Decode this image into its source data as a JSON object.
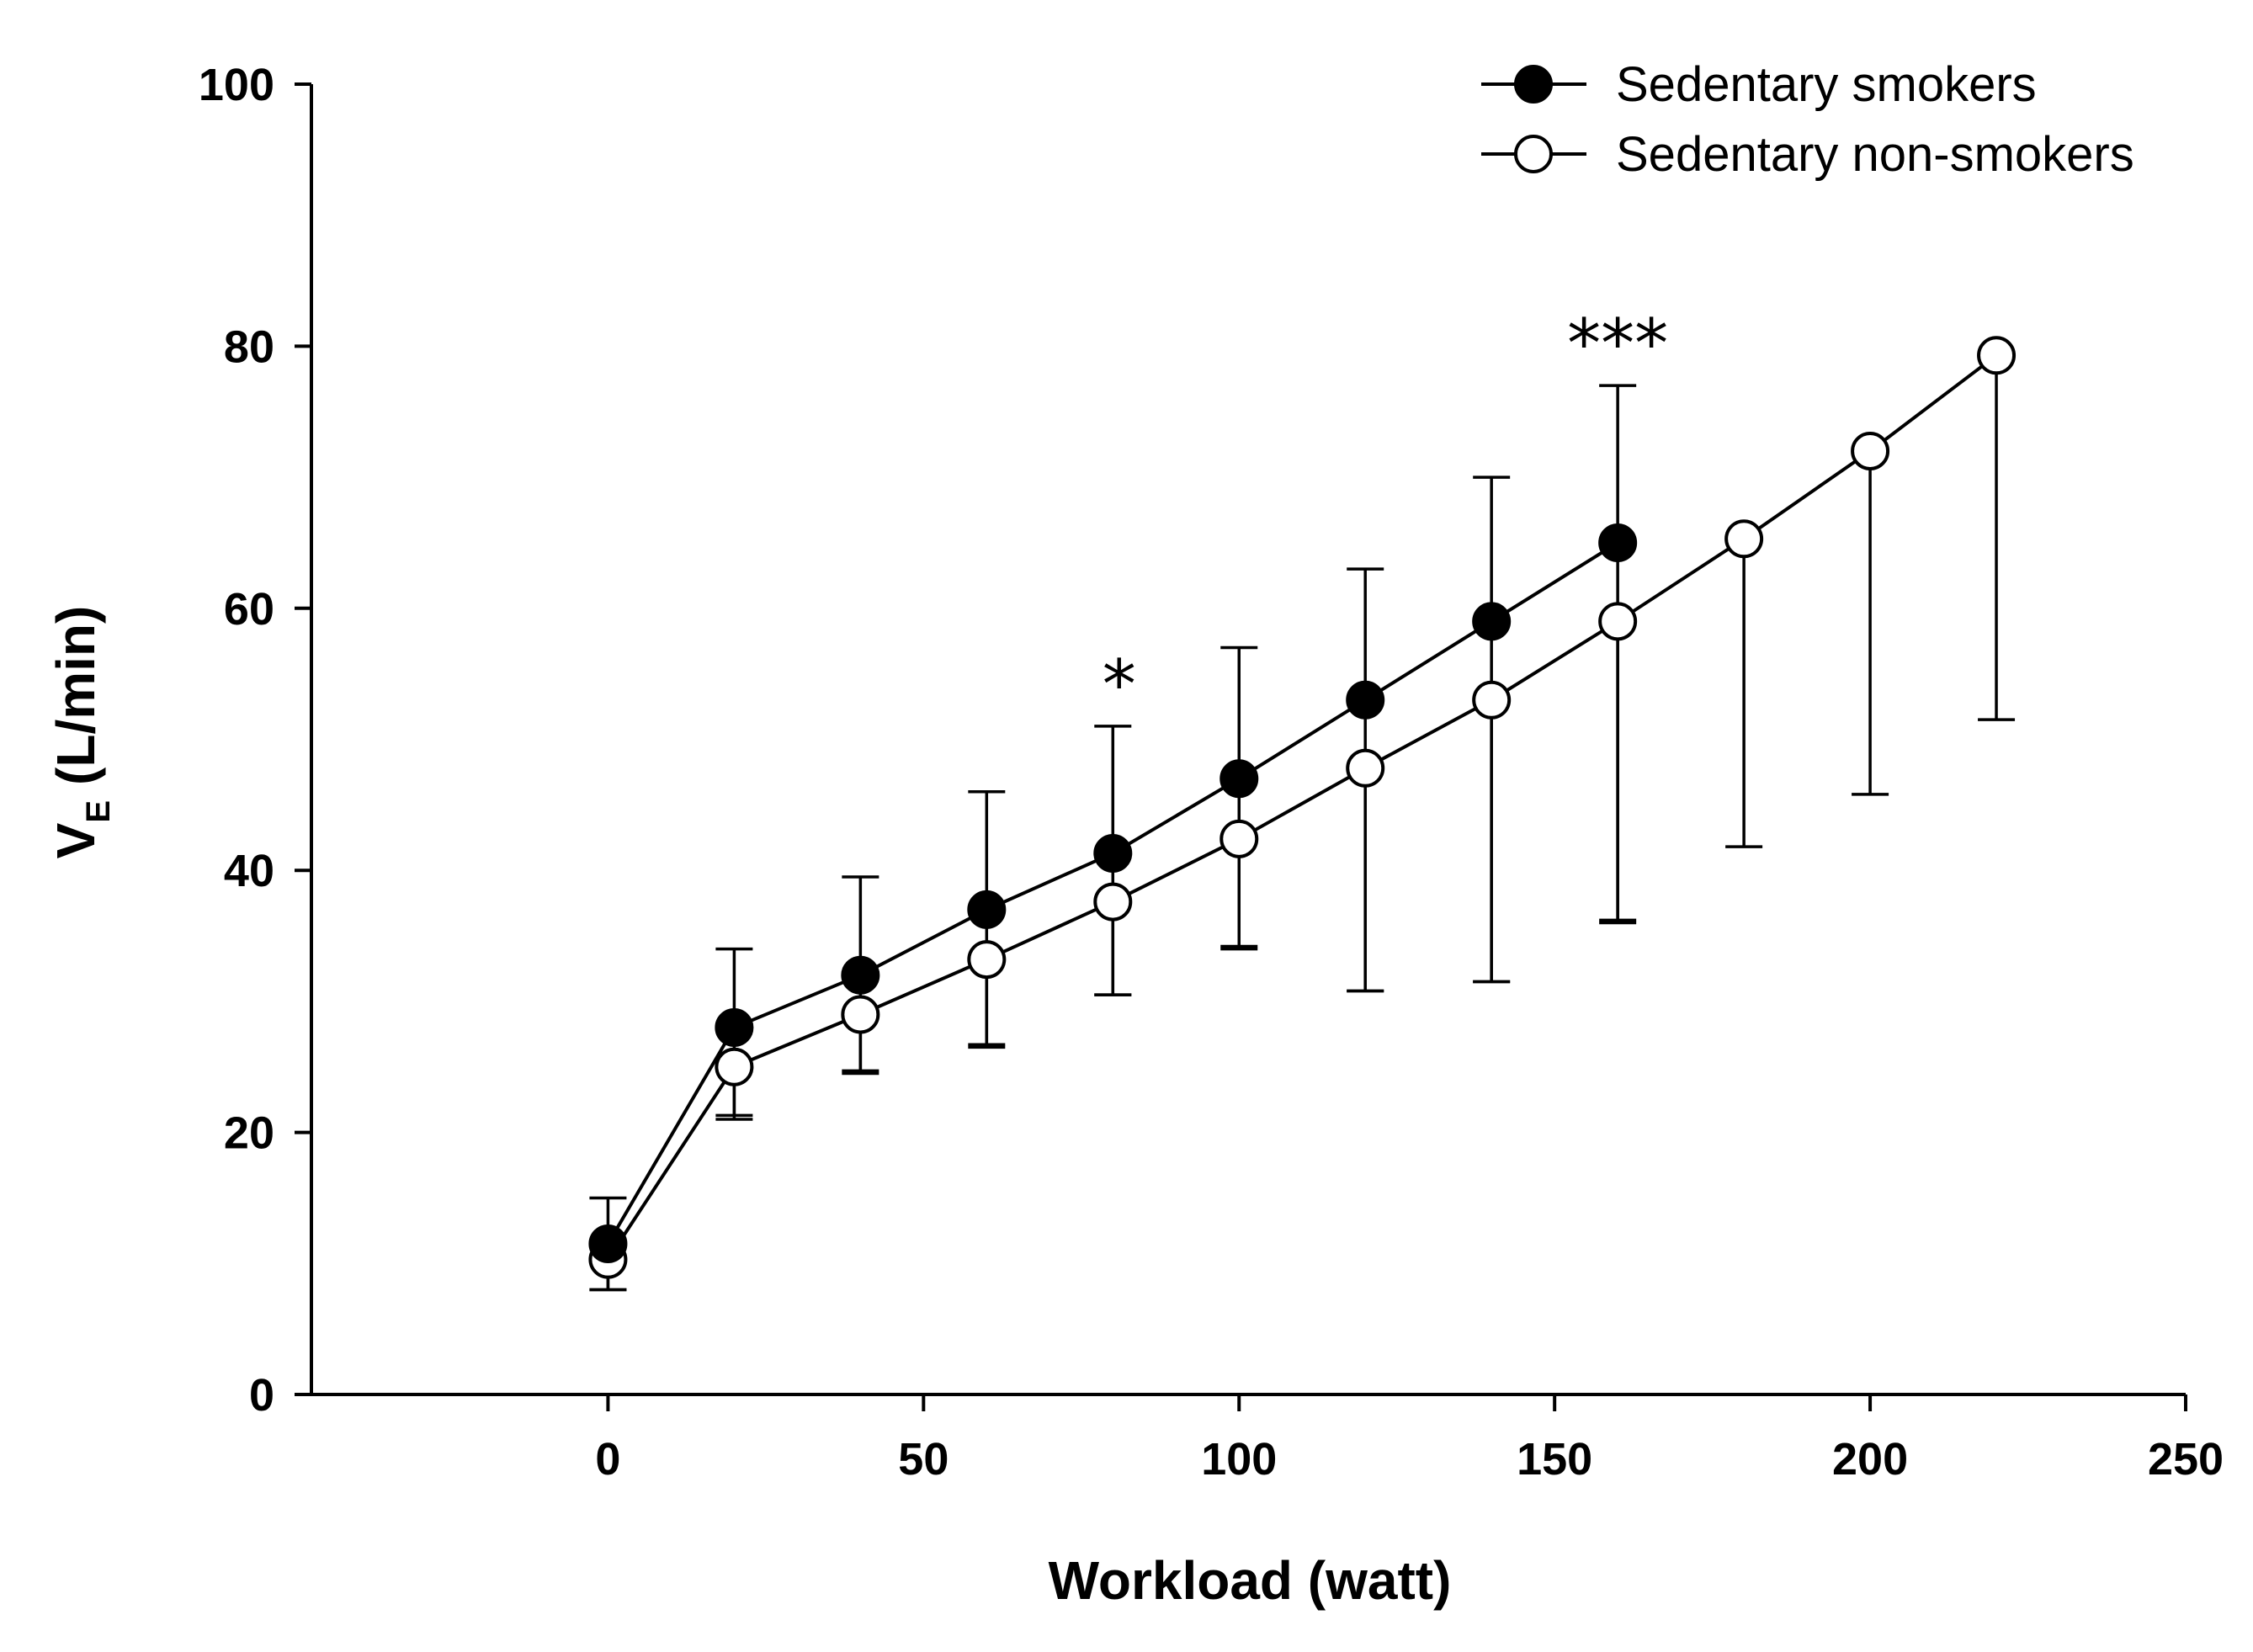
{
  "chart_data": {
    "type": "line",
    "title": "",
    "xlabel": "Workload (watt)",
    "ylabel_main": "V",
    "ylabel_sub": "E",
    "ylabel_unit": "(L/min)",
    "xlim": [
      -47,
      250
    ],
    "ylim": [
      0,
      100
    ],
    "x_ticks": [
      0,
      50,
      100,
      150,
      200,
      250
    ],
    "y_ticks": [
      0,
      20,
      40,
      60,
      80,
      100
    ],
    "grid": false,
    "legend_position": "top-right",
    "series": [
      {
        "name": "Sedentary smokers",
        "marker": "filled-circle",
        "x": [
          0,
          20,
          40,
          60,
          80,
          100,
          120,
          140,
          160
        ],
        "y": [
          11.5,
          28,
          32,
          37,
          41.3,
          47,
          53,
          59,
          65
        ],
        "err_upper": [
          15,
          34,
          39.5,
          46,
          51,
          57,
          63,
          70,
          77
        ],
        "err_lower": [
          8,
          21,
          24.5,
          26.5,
          30.5,
          34,
          30.8,
          31.5,
          36
        ]
      },
      {
        "name": "Sedentary non-smokers",
        "marker": "open-circle",
        "x": [
          0,
          20,
          40,
          60,
          80,
          100,
          120,
          140,
          160,
          180,
          200,
          220
        ],
        "y": [
          10.3,
          25,
          29,
          33.2,
          37.6,
          42.4,
          47.8,
          53,
          59,
          65.3,
          72,
          79.3
        ],
        "err_upper": [],
        "err_lower": [
          8,
          21.3,
          24.7,
          26.7,
          30.5,
          34.2,
          30.8,
          31.5,
          36.2,
          41.8,
          45.8,
          51.5
        ]
      }
    ],
    "annotations": [
      {
        "text": "*",
        "x": 81,
        "y": 51
      },
      {
        "text": "***",
        "x": 160,
        "y": 77
      }
    ]
  }
}
